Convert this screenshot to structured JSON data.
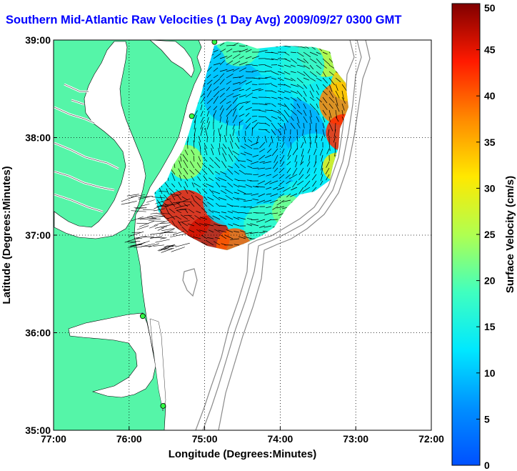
{
  "chart_data": {
    "type": "heatmap",
    "title": "Southern Mid-Atlantic Raw Velocities (1 Day Avg) 2009/09/27 0300 GMT",
    "xlabel": "Longitude (Degrees:Minutes)",
    "ylabel": "Latitude (Degrees:Minutes)",
    "xlim": [
      -77,
      -72
    ],
    "ylim": [
      35,
      39
    ],
    "x_ticks": [
      {
        "value": -77,
        "label": "77:00"
      },
      {
        "value": -76,
        "label": "76:00"
      },
      {
        "value": -75,
        "label": "75:00"
      },
      {
        "value": -74,
        "label": "74:00"
      },
      {
        "value": -73,
        "label": "73:00"
      },
      {
        "value": -72,
        "label": "72:00"
      }
    ],
    "y_ticks": [
      {
        "value": 35,
        "label": "35:00"
      },
      {
        "value": 36,
        "label": "36:00"
      },
      {
        "value": 37,
        "label": "37:00"
      },
      {
        "value": 38,
        "label": "38:00"
      },
      {
        "value": 39,
        "label": "39:00"
      }
    ],
    "grid": true,
    "colorbar": {
      "label": "Surface Velocity (cm/s)",
      "min": 0,
      "max": 50,
      "ticks": [
        0,
        5,
        10,
        15,
        20,
        25,
        30,
        35,
        40,
        45,
        50
      ],
      "colormap": "jet"
    },
    "land_color": "#55f5a8",
    "stations": [
      {
        "lon": -74.87,
        "lat": 38.98
      },
      {
        "lon": -75.17,
        "lat": 38.22
      },
      {
        "lon": -75.82,
        "lat": 36.17
      },
      {
        "lon": -75.55,
        "lat": 35.25
      }
    ]
  }
}
